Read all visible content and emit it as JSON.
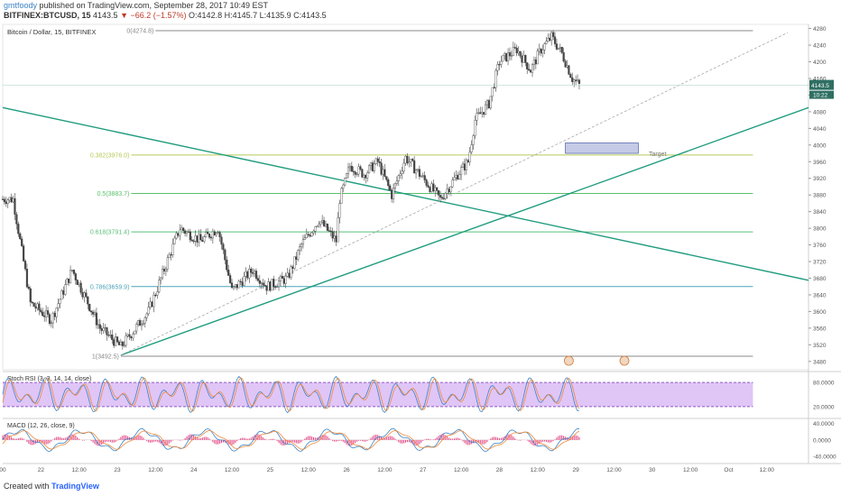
{
  "header": {
    "user": "gmtfoody",
    "published": "published on TradingView.com, September 28, 2017 10:49 EST",
    "symbol": "BITFINEX:BTCUSD, 15",
    "last": "4143.5",
    "change": "▼ −66.2 (−1.57%)",
    "ohlc": "O:4142.8 H:4145.7 L:4135.9 C:4143.5"
  },
  "chart_title": "Bitcoin / Dollar, 15, BITFINEX",
  "footer": {
    "created_with": "Created with",
    "brand": "TradingView"
  },
  "colors": {
    "candle_up": "#4a4a4a",
    "candle_down": "#4a4a4a",
    "trendline": "#1f9c7e",
    "fib_0": "#888888",
    "fib_382": "#b8c95a",
    "fib_5": "#59c06b",
    "fib_618": "#59c07b",
    "fib_786": "#4aa3b8",
    "fib_1": "#888888",
    "rsi_band": "#d8b6f5",
    "rsi_k": "#3d85c6",
    "rsi_d": "#ef8a3b",
    "macd_line": "#3d85c6",
    "signal_line": "#ef8a3b",
    "hist": "#e23d7c",
    "target_box": "#c5cbe6"
  },
  "chart_data": {
    "type": "candlestick",
    "symbol": "BITFINEX:BTCUSD",
    "interval": "15",
    "ylim": [
      3460,
      4290
    ],
    "y_ticks": [
      3480,
      3520,
      3560,
      3600,
      3640,
      3680,
      3720,
      3760,
      3800,
      3840,
      3880,
      3920,
      3960,
      4000,
      4040,
      4080,
      4120,
      4160,
      4200,
      4240,
      4280
    ],
    "x_ticks": [
      "00",
      "22",
      "12:00",
      "23",
      "12:00",
      "24",
      "12:00",
      "25",
      "12:00",
      "26",
      "12:00",
      "27",
      "12:00",
      "28",
      "12:00",
      "29",
      "12:00",
      "30",
      "12:00",
      "Oct",
      "12:00"
    ],
    "price_path": [
      [
        0,
        3870
      ],
      [
        3,
        3870
      ],
      [
        8,
        3620
      ],
      [
        14,
        3580
      ],
      [
        20,
        3700
      ],
      [
        28,
        3560
      ],
      [
        34,
        3515
      ],
      [
        42,
        3600
      ],
      [
        46,
        3690
      ],
      [
        51,
        3800
      ],
      [
        57,
        3770
      ],
      [
        62,
        3800
      ],
      [
        66,
        3650
      ],
      [
        72,
        3700
      ],
      [
        76,
        3660
      ],
      [
        82,
        3680
      ],
      [
        86,
        3760
      ],
      [
        91,
        3820
      ],
      [
        96,
        3770
      ],
      [
        97,
        3870
      ],
      [
        100,
        3950
      ],
      [
        104,
        3930
      ],
      [
        108,
        3960
      ],
      [
        112,
        3880
      ],
      [
        116,
        3970
      ],
      [
        120,
        3930
      ],
      [
        126,
        3870
      ],
      [
        131,
        3930
      ],
      [
        134,
        3960
      ],
      [
        136,
        4060
      ],
      [
        140,
        4100
      ],
      [
        143,
        4200
      ],
      [
        148,
        4230
      ],
      [
        152,
        4180
      ],
      [
        155,
        4230
      ],
      [
        158,
        4260
      ],
      [
        161,
        4220
      ],
      [
        164,
        4160
      ],
      [
        166,
        4143.5
      ]
    ],
    "last_price": 4143.5,
    "last_price_tag": "4143.5",
    "countdown": "10:22",
    "fibonacci": [
      {
        "ratio": "0",
        "price": 4274.8,
        "label": "0(4274.8)"
      },
      {
        "ratio": "0.382",
        "price": 3976.0,
        "label": "0.382(3976.0)"
      },
      {
        "ratio": "0.5",
        "price": 3883.7,
        "label": "0.5(3883.7)"
      },
      {
        "ratio": "0.618",
        "price": 3791.4,
        "label": "0.618(3791.4)"
      },
      {
        "ratio": "0.786",
        "price": 3659.9,
        "label": "0.786(3659.9)"
      },
      {
        "ratio": "1",
        "price": 3492.5,
        "label": "1(3492.5)"
      }
    ],
    "target": {
      "label": "Target",
      "low": 3980,
      "high": 4005
    },
    "trendlines": [
      {
        "name": "descending",
        "from": [
          0,
          4090
        ],
        "to": [
          232,
          3675
        ]
      },
      {
        "name": "ascending",
        "from": [
          34,
          3495
        ],
        "to": [
          232,
          4090
        ]
      },
      {
        "name": "projection",
        "dashed": true,
        "from": [
          34,
          3495
        ],
        "to": [
          226,
          4270
        ]
      }
    ],
    "indicators": {
      "stoch_rsi": {
        "label": "Stoch RSI (3, 3, 14, 14, close)",
        "ylim": [
          -5,
          105
        ],
        "upper": 80,
        "lower": 20,
        "ticks": [
          "80.0000",
          "20.0000"
        ]
      },
      "macd": {
        "label": "MACD (12, 26, close, 9)",
        "ylim": [
          -55,
          50
        ],
        "ticks": [
          "40.0000",
          "0.0000",
          "-40.0000"
        ]
      }
    }
  }
}
